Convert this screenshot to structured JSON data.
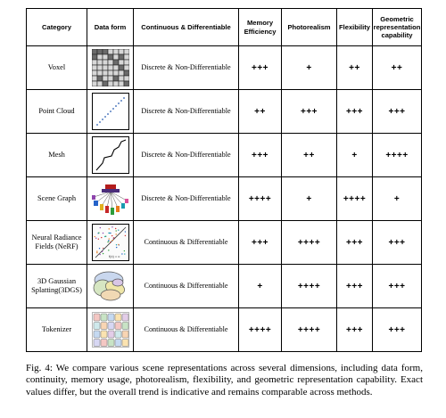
{
  "headers": {
    "category": "Category",
    "data_form": "Data form",
    "continuity": "Continuous & Differentiable",
    "memory": "Memory Efficiency",
    "photorealism": "Photorealism",
    "flexibility": "Flexibility",
    "geometric": "Geometric representation capability"
  },
  "rows": [
    {
      "category": "Voxel",
      "form_icon": "voxel-grid-icon",
      "continuity": "Discrete & Non-Differentiable",
      "memory": "+++",
      "photorealism": "+",
      "flexibility": "++",
      "geometric": "++"
    },
    {
      "category": "Point Cloud",
      "form_icon": "point-cloud-icon",
      "continuity": "Discrete & Non-Differentiable",
      "memory": "++",
      "photorealism": "+++",
      "flexibility": "+++",
      "geometric": "+++"
    },
    {
      "category": "Mesh",
      "form_icon": "mesh-icon",
      "continuity": "Discrete & Non-Differentiable",
      "memory": "+++",
      "photorealism": "++",
      "flexibility": "+",
      "geometric": "++++"
    },
    {
      "category": "Scene Graph",
      "form_icon": "scene-graph-icon",
      "continuity": "Discrete & Non-Differentiable",
      "memory": "++++",
      "photorealism": "+",
      "flexibility": "++++",
      "geometric": "+"
    },
    {
      "category": "Neural Radiance Fields (NeRF)",
      "form_icon": "nerf-icon",
      "form_label": "f(x) = c",
      "continuity": "Continuous & Differentiable",
      "memory": "+++",
      "photorealism": "++++",
      "flexibility": "+++",
      "geometric": "+++"
    },
    {
      "category": "3D Gaussian Splatting(3DGS)",
      "form_icon": "gaussian-splat-icon",
      "continuity": "Continuous & Differentiable",
      "memory": "+",
      "photorealism": "++++",
      "flexibility": "+++",
      "geometric": "+++"
    },
    {
      "category": "Tokenizer",
      "form_icon": "token-grid-icon",
      "continuity": "Continuous & Differentiable",
      "memory": "++++",
      "photorealism": "++++",
      "flexibility": "+++",
      "geometric": "+++"
    }
  ],
  "caption": "Fig. 4: We compare various scene representations across several dimensions, including data form, continuity, memory usage, photorealism, flexibility, and geometric representation capability. Exact values differ, but the overall trend is indicative and remains comparable across methods."
}
